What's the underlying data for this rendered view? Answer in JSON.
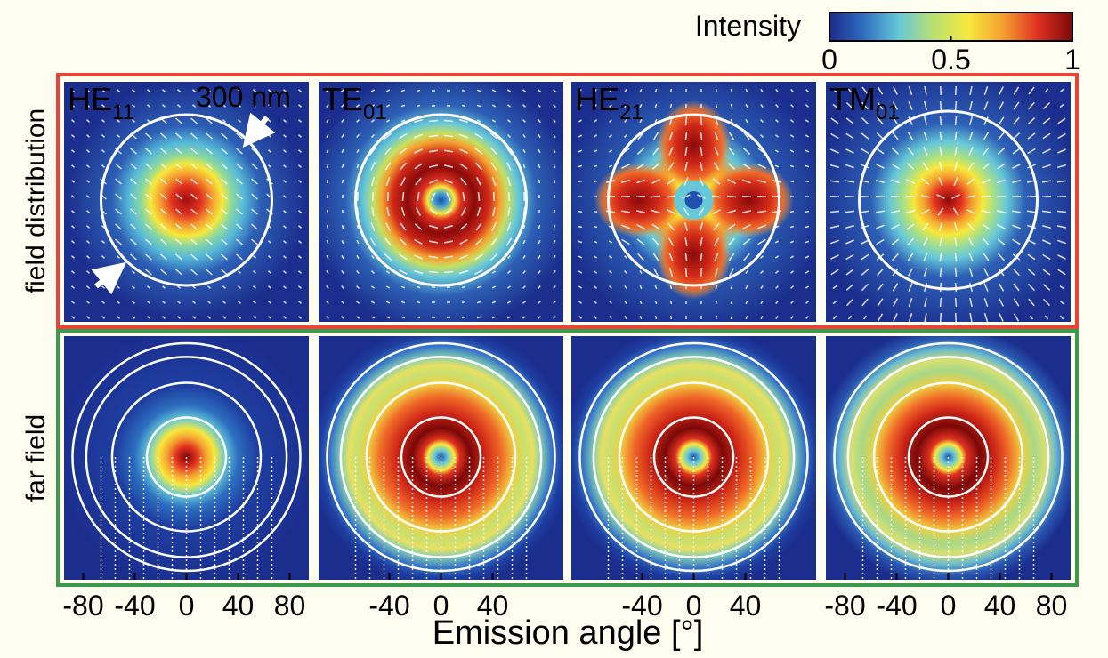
{
  "colorbar": {
    "title": "Intensity",
    "ticks": [
      {
        "value": 0,
        "label": "0"
      },
      {
        "value": 0.5,
        "label": "0.5"
      },
      {
        "value": 1,
        "label": "1"
      }
    ],
    "colors": [
      "#1a2a8c",
      "#2f6fc0",
      "#66c8d8",
      "#b8e070",
      "#f6e93c",
      "#f5a030",
      "#e03020",
      "#7a0a0a"
    ]
  },
  "rows": [
    {
      "label": "field distribution",
      "color": "#e8443a"
    },
    {
      "label": "far field",
      "color": "#3d9a4a"
    }
  ],
  "field_panels": [
    {
      "mode": "HE",
      "sub": "11",
      "type": "gauss",
      "vectors": "linear"
    },
    {
      "mode": "TE",
      "sub": "01",
      "type": "ring",
      "vectors": "azimuthal"
    },
    {
      "mode": "HE",
      "sub": "21",
      "type": "cross",
      "vectors": "hyperbolic"
    },
    {
      "mode": "TM",
      "sub": "01",
      "type": "gauss_wide",
      "vectors": "radial"
    }
  ],
  "scale_label": "300 nm",
  "far_panels": [
    {
      "type": "far_gauss"
    },
    {
      "type": "far_ring"
    },
    {
      "type": "far_ring"
    },
    {
      "type": "far_ring_tm"
    }
  ],
  "x_axis": {
    "label": "Emission angle [°]",
    "panels": [
      {
        "ticks": [
          -80,
          -40,
          0,
          40,
          80
        ],
        "labels": [
          "-80",
          "-40",
          "0",
          "40",
          "80"
        ]
      },
      {
        "ticks": [
          -40,
          0,
          40
        ],
        "labels": [
          "-40",
          "0",
          "40"
        ]
      },
      {
        "ticks": [
          -40,
          0,
          40
        ],
        "labels": [
          "-40",
          "0",
          "40"
        ]
      },
      {
        "ticks": [
          -80,
          -40,
          0,
          40,
          80
        ],
        "labels": [
          "-80",
          "-40",
          "0",
          "40",
          "80"
        ]
      }
    ]
  },
  "chart_data": {
    "type": "heatmap",
    "title": "",
    "xlabel": "Emission angle [°]",
    "ylabel": "",
    "xlim": [
      -90,
      90
    ],
    "colorbar_label": "Intensity",
    "colorbar_range": [
      0,
      1
    ],
    "row_labels": [
      "field distribution",
      "far field"
    ],
    "modes": [
      "HE11",
      "TE01",
      "HE21",
      "TM01"
    ],
    "annotation": "300 nm"
  }
}
